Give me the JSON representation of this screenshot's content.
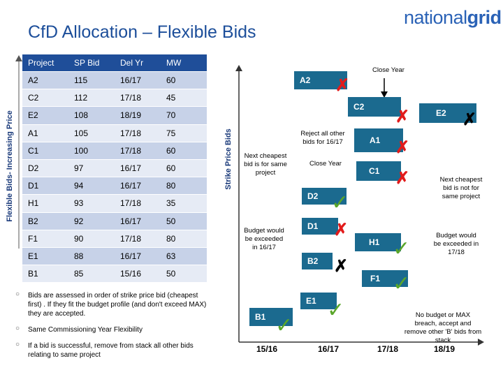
{
  "title": "CfD Allocation – Flexible Bids",
  "logo": {
    "part1": "national",
    "part2": "grid"
  },
  "vertical_label": "Flexible Bids- Increasing Price",
  "strike_axis_label": "Strike Price Bids",
  "table": {
    "headers": [
      "Project",
      "SP Bid",
      "Del Yr",
      "MW"
    ],
    "rows": [
      [
        "A2",
        "115",
        "16/17",
        "60"
      ],
      [
        "C2",
        "112",
        "17/18",
        "45"
      ],
      [
        "E2",
        "108",
        "18/19",
        "70"
      ],
      [
        "A1",
        "105",
        "17/18",
        "75"
      ],
      [
        "C1",
        "100",
        "17/18",
        "60"
      ],
      [
        "D2",
        "97",
        "16/17",
        "60"
      ],
      [
        "D1",
        "94",
        "16/17",
        "80"
      ],
      [
        "H1",
        "93",
        "17/18",
        "35"
      ],
      [
        "B2",
        "92",
        "16/17",
        "50"
      ],
      [
        "F1",
        "90",
        "17/18",
        "80"
      ],
      [
        "E1",
        "88",
        "16/17",
        "63"
      ],
      [
        "B1",
        "85",
        "15/16",
        "50"
      ]
    ]
  },
  "bullets": [
    "Bids are assessed in order of strike price bid (cheapest first) . If they fit the budget profile (and don't exceed MAX) they are accepted.",
    "Same Commissioning Year Flexibility",
    "If  a bid is successful, remove from stack all other bids relating to same project"
  ],
  "boxes": {
    "a2": "A2",
    "c2": "C2",
    "e2": "E2",
    "a1": "A1",
    "c1": "C1",
    "d2": "D2",
    "d1": "D1",
    "h1": "H1",
    "b2": "B2",
    "f1": "F1",
    "e1": "E1",
    "b1": "B1"
  },
  "notes": {
    "close_year_top": "Close Year",
    "reject": "Reject all other  bids for 16/17",
    "close_year_mid": "Close Year",
    "next_cheapest_same": "Next cheapest bid is for same project",
    "budget_1617": "Budget would be exceeded in 16/17",
    "next_cheapest_not_same": "Next cheapest bid is not for same project",
    "budget_1718": "Budget would be exceeded in 17/18",
    "no_budget": "No budget or MAX breach, accept and remove other 'B' bids from stack"
  },
  "years": [
    "15/16",
    "16/17",
    "17/18",
    "18/19"
  ],
  "colors": {
    "box": "#1b6a8f",
    "header": "#1f4e99",
    "accept": "#5aa62a",
    "reject": "#e21b1b",
    "title": "#1c4e9a"
  }
}
